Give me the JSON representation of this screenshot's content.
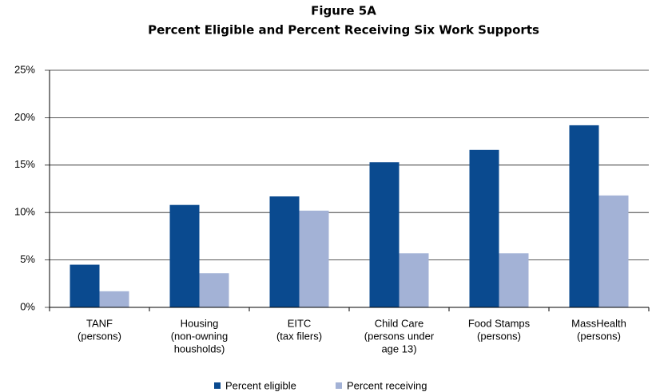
{
  "chart_data": {
    "type": "bar",
    "title": "Figure 5A",
    "subtitle": "Percent Eligible and Percent Receiving Six Work Supports",
    "categories": [
      [
        "TANF",
        "(persons)"
      ],
      [
        "Housing",
        "(non-owning",
        "housholds)"
      ],
      [
        "EITC",
        "(tax filers)"
      ],
      [
        "Child Care",
        "(persons under",
        "age 13)"
      ],
      [
        "Food Stamps",
        "(persons)"
      ],
      [
        "MassHealth",
        "(persons)"
      ]
    ],
    "series": [
      {
        "name": "Percent eligible",
        "color": "#0a4a8f",
        "values": [
          4.5,
          10.8,
          11.7,
          15.3,
          16.6,
          19.2
        ]
      },
      {
        "name": "Percent receiving",
        "color": "#a3b2d6",
        "values": [
          1.7,
          3.6,
          10.2,
          5.7,
          5.7,
          11.8
        ]
      }
    ],
    "ylim": [
      0,
      25
    ],
    "yticks": [
      {
        "value": 0,
        "label": "0%"
      },
      {
        "value": 5,
        "label": "5%"
      },
      {
        "value": 10,
        "label": "10%"
      },
      {
        "value": 15,
        "label": "15%"
      },
      {
        "value": 20,
        "label": "20%"
      },
      {
        "value": 25,
        "label": "25%"
      }
    ],
    "grid": true
  }
}
